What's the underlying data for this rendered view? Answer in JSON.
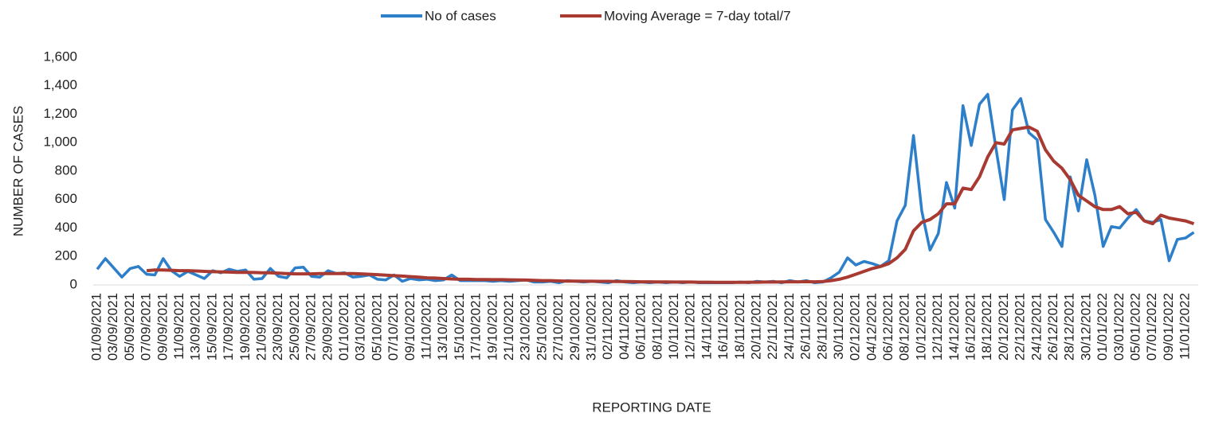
{
  "chart_data": {
    "type": "line",
    "x_label": "REPORTING DATE",
    "y_label": "NUMBER OF CASES",
    "categories": [
      "01/09/2021",
      null,
      "03/09/2021",
      null,
      "05/09/2021",
      null,
      "07/09/2021",
      null,
      "09/09/2021",
      null,
      "11/09/2021",
      null,
      "13/09/2021",
      null,
      "15/09/2021",
      null,
      "17/09/2021",
      null,
      "19/09/2021",
      null,
      "21/09/2021",
      null,
      "23/09/2021",
      null,
      "25/09/2021",
      null,
      "27/09/2021",
      null,
      "29/09/2021",
      null,
      "01/10/2021",
      null,
      "03/10/2021",
      null,
      "05/10/2021",
      null,
      "07/10/2021",
      null,
      "09/10/2021",
      null,
      "11/10/2021",
      null,
      "13/10/2021",
      null,
      "15/10/2021",
      null,
      "17/10/2021",
      null,
      "19/10/2021",
      null,
      "21/10/2021",
      null,
      "23/10/2021",
      null,
      "25/10/2021",
      null,
      "27/10/2021",
      null,
      "29/10/2021",
      null,
      "31/10/2021",
      null,
      "02/11/2021",
      null,
      "04/11/2021",
      null,
      "06/11/2021",
      null,
      "08/11/2021",
      null,
      "10/11/2021",
      null,
      "12/11/2021",
      null,
      "14/11/2021",
      null,
      "16/11/2021",
      null,
      "18/11/2021",
      null,
      "20/11/2021",
      null,
      "22/11/2021",
      null,
      "24/11/2021",
      null,
      "26/11/2021",
      null,
      "28/11/2021",
      null,
      "30/11/2021",
      null,
      "02/12/2021",
      null,
      "04/12/2021",
      null,
      "06/12/2021",
      null,
      "08/12/2021",
      null,
      "10/12/2021",
      null,
      "12/12/2021",
      null,
      "14/12/2021",
      null,
      "16/12/2021",
      null,
      "18/12/2021",
      null,
      "20/12/2021",
      null,
      "22/12/2021",
      null,
      "24/12/2021",
      null,
      "26/12/2021",
      null,
      "28/12/2021",
      null,
      "30/12/2021",
      null,
      "01/01/2022",
      null,
      "03/01/2022",
      null,
      "05/01/2022",
      null,
      "07/01/2022",
      null,
      "09/01/2022",
      null,
      "11/01/2022",
      null
    ],
    "series": [
      {
        "name": "No of cases",
        "color": "#2e7fc9",
        "values": [
          110,
          185,
          120,
          55,
          115,
          130,
          75,
          70,
          185,
          100,
          60,
          95,
          70,
          45,
          100,
          85,
          110,
          95,
          105,
          40,
          45,
          115,
          60,
          50,
          120,
          125,
          60,
          55,
          100,
          80,
          85,
          55,
          60,
          70,
          40,
          35,
          70,
          25,
          45,
          35,
          40,
          30,
          35,
          70,
          30,
          30,
          30,
          30,
          25,
          30,
          25,
          30,
          35,
          20,
          20,
          25,
          15,
          30,
          25,
          20,
          25,
          20,
          15,
          30,
          20,
          15,
          20,
          15,
          20,
          15,
          20,
          15,
          20,
          15,
          15,
          15,
          15,
          15,
          20,
          15,
          25,
          20,
          25,
          15,
          30,
          20,
          30,
          15,
          20,
          50,
          90,
          190,
          140,
          165,
          150,
          130,
          170,
          450,
          560,
          1050,
          520,
          245,
          360,
          720,
          540,
          1260,
          980,
          1270,
          1340,
          960,
          600,
          1230,
          1310,
          1070,
          1020,
          460,
          370,
          270,
          760,
          520,
          880,
          630,
          270,
          410,
          400,
          470,
          530,
          450,
          440,
          460,
          170,
          320,
          330,
          370
        ]
      },
      {
        "name": "Moving Average = 7-day total/7",
        "color": "#a83a32",
        "values": [
          null,
          null,
          null,
          null,
          null,
          null,
          100,
          105,
          105,
          103,
          100,
          100,
          98,
          95,
          93,
          92,
          90,
          88,
          88,
          87,
          85,
          85,
          82,
          80,
          78,
          78,
          78,
          80,
          80,
          80,
          80,
          80,
          78,
          75,
          72,
          68,
          65,
          62,
          58,
          55,
          50,
          48,
          45,
          42,
          40,
          40,
          38,
          38,
          37,
          37,
          36,
          35,
          34,
          32,
          30,
          30,
          28,
          27,
          27,
          26,
          26,
          25,
          25,
          24,
          24,
          23,
          22,
          22,
          21,
          21,
          20,
          20,
          20,
          19,
          19,
          18,
          18,
          18,
          18,
          19,
          19,
          20,
          20,
          21,
          22,
          22,
          23,
          22,
          24,
          30,
          40,
          55,
          75,
          95,
          115,
          130,
          150,
          190,
          250,
          380,
          440,
          460,
          500,
          570,
          570,
          680,
          670,
          760,
          900,
          1000,
          990,
          1090,
          1100,
          1110,
          1080,
          950,
          870,
          820,
          740,
          630,
          590,
          550,
          530,
          530,
          550,
          500,
          510,
          450,
          430,
          490,
          470,
          460,
          450,
          430
        ]
      }
    ],
    "ylim": [
      0,
      1600
    ],
    "yticks": [
      0,
      200,
      400,
      600,
      800,
      {
        "value": 1000,
        "label": "1,000"
      },
      {
        "value": 1200,
        "label": "1,200"
      },
      {
        "value": 1400,
        "label": "1,400"
      },
      {
        "value": 1600,
        "label": "1,600"
      }
    ],
    "legend": "top"
  }
}
